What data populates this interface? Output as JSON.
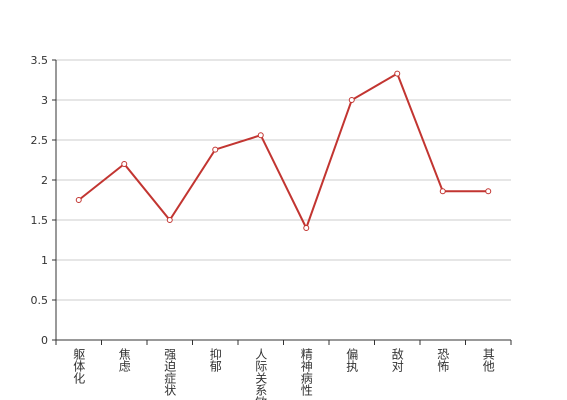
{
  "chart_data": {
    "type": "line",
    "categories": [
      "躯体化",
      "焦虑",
      "强迫症状",
      "抑郁",
      "人际关系敏感",
      "精神病性",
      "偏执",
      "敌对",
      "恐怖",
      "其他"
    ],
    "series": [
      {
        "color": "#c23531",
        "values": [
          1.75,
          2.2,
          1.5,
          2.38,
          2.56,
          1.4,
          3.0,
          3.33,
          1.86,
          1.86
        ]
      }
    ],
    "ylim": [
      0,
      3.5
    ],
    "yticks": [
      0,
      0.5,
      1,
      1.5,
      2,
      2.5,
      3,
      3.5
    ],
    "grid": true
  }
}
